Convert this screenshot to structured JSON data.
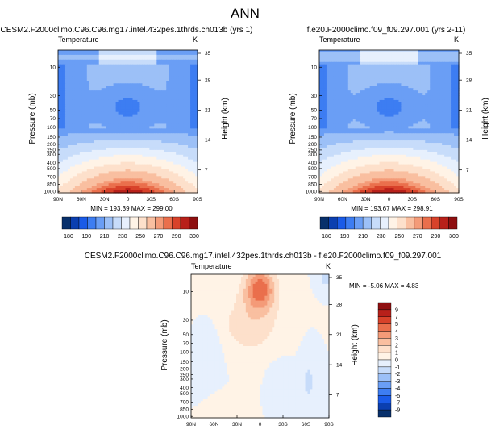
{
  "page_title": "ANN",
  "palette_abs": [
    "#08306b",
    "#0b3fb0",
    "#1a5be8",
    "#3d7df2",
    "#6a9ef5",
    "#9cc0f7",
    "#c7dcfa",
    "#e7f0fd",
    "#fff3e6",
    "#fde0cb",
    "#f9bfa0",
    "#f49b78",
    "#ea6f4c",
    "#d8422a",
    "#b8201a",
    "#8e0f10"
  ],
  "palette_diff": [
    "#08306b",
    "#0b3fb0",
    "#1a5be8",
    "#3d7df2",
    "#6a9ef5",
    "#9cc0f7",
    "#c7dcfa",
    "#e7f0fd",
    "#fff3e6",
    "#fde0cb",
    "#f9bfa0",
    "#f49b78",
    "#ea6f4c",
    "#d8422a",
    "#b8201a",
    "#8e0f10"
  ],
  "chart_data": [
    {
      "type": "heatmap",
      "title": "CESM2.F2000climo.C96.C96.mg17.intel.432pes.1thrds.ch013b (yrs 1)",
      "field_label": "Temperature",
      "units": "K",
      "ylabel": "Pressure (mb)",
      "ylabel_right": "Height (km)",
      "x_ticks": [
        "90N",
        "60N",
        "30N",
        "0",
        "30S",
        "60S",
        "90S"
      ],
      "y_ticks": [
        "10",
        "30",
        "50",
        "70",
        "100",
        "150",
        "200",
        "250",
        "300",
        "400",
        "500",
        "700",
        "850",
        "1000"
      ],
      "y_ticks_right": [
        "35",
        "28",
        "21",
        "14",
        "7"
      ],
      "stats": "MIN = 193.39   MAX = 299.00",
      "colorbar_labels": [
        "180",
        "190",
        "210",
        "230",
        "250",
        "270",
        "290",
        "300"
      ]
    },
    {
      "type": "heatmap",
      "title": "f.e20.F2000climo.f09_f09.297.001 (yrs 2-11)",
      "field_label": "Temperature",
      "units": "K",
      "ylabel": "Pressure (mb)",
      "ylabel_right": "Height (km)",
      "x_ticks": [
        "90N",
        "60N",
        "30N",
        "0",
        "30S",
        "60S",
        "90S"
      ],
      "y_ticks": [
        "10",
        "30",
        "50",
        "70",
        "100",
        "150",
        "200",
        "250",
        "300",
        "400",
        "500",
        "700",
        "850",
        "1000"
      ],
      "y_ticks_right": [
        "35",
        "28",
        "21",
        "14",
        "7"
      ],
      "stats": "MIN = 193.67   MAX = 298.91",
      "colorbar_labels": [
        "180",
        "190",
        "210",
        "230",
        "250",
        "270",
        "290",
        "300"
      ]
    },
    {
      "type": "heatmap",
      "title": "CESM2.F2000climo.C96.C96.mg17.intel.432pes.1thrds.ch013b - f.e20.F2000climo.f09_f09.297.001",
      "field_label": "Temperature",
      "units": "K",
      "ylabel": "Pressure (mb)",
      "ylabel_right": "Height (km)",
      "x_ticks": [
        "90N",
        "60N",
        "30N",
        "0",
        "30S",
        "60S",
        "90S"
      ],
      "y_ticks": [
        "10",
        "30",
        "50",
        "70",
        "100",
        "150",
        "200",
        "250",
        "300",
        "400",
        "500",
        "700",
        "850",
        "1000"
      ],
      "y_ticks_right": [
        "35",
        "28",
        "21",
        "14",
        "7"
      ],
      "stats": "MIN =  -5.06  MAX =   4.83",
      "colorbar_labels": [
        "9",
        "7",
        "5",
        "4",
        "3",
        "2",
        "1",
        "0",
        "-1",
        "-2",
        "-3",
        "-4",
        "-5",
        "-7",
        "-9"
      ]
    }
  ]
}
